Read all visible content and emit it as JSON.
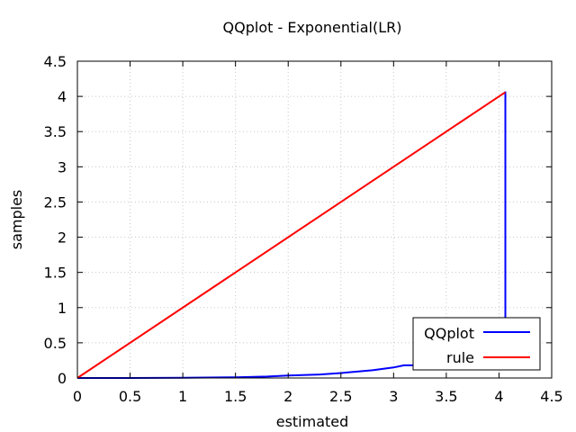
{
  "chart_data": {
    "type": "line",
    "title": "QQplot - Exponential(LR)",
    "xlabel": "estimated",
    "ylabel": "samples",
    "xlim": [
      0,
      4.5
    ],
    "ylim": [
      0,
      4.5
    ],
    "xticks": [
      "0",
      "0.5",
      "1",
      "1.5",
      "2",
      "2.5",
      "3",
      "3.5",
      "4",
      "4.5"
    ],
    "yticks": [
      "0",
      "0.5",
      "1",
      "1.5",
      "2",
      "2.5",
      "3",
      "3.5",
      "4",
      "4.5"
    ],
    "grid": true,
    "legend_position": "bottom-right",
    "series": [
      {
        "name": "QQplot",
        "color": "#0000ff",
        "x": [
          0,
          0.5,
          1.0,
          1.5,
          1.8,
          2.0,
          2.3,
          2.5,
          2.8,
          3.0,
          3.1,
          3.25,
          3.5,
          3.8,
          4.06,
          4.06
        ],
        "y": [
          0,
          0.0,
          0.002,
          0.01,
          0.02,
          0.035,
          0.05,
          0.07,
          0.11,
          0.15,
          0.18,
          0.18,
          0.23,
          0.3,
          0.41,
          4.07
        ]
      },
      {
        "name": "rule",
        "color": "#ff0000",
        "x": [
          0,
          4.06
        ],
        "y": [
          0,
          4.06
        ]
      }
    ]
  }
}
